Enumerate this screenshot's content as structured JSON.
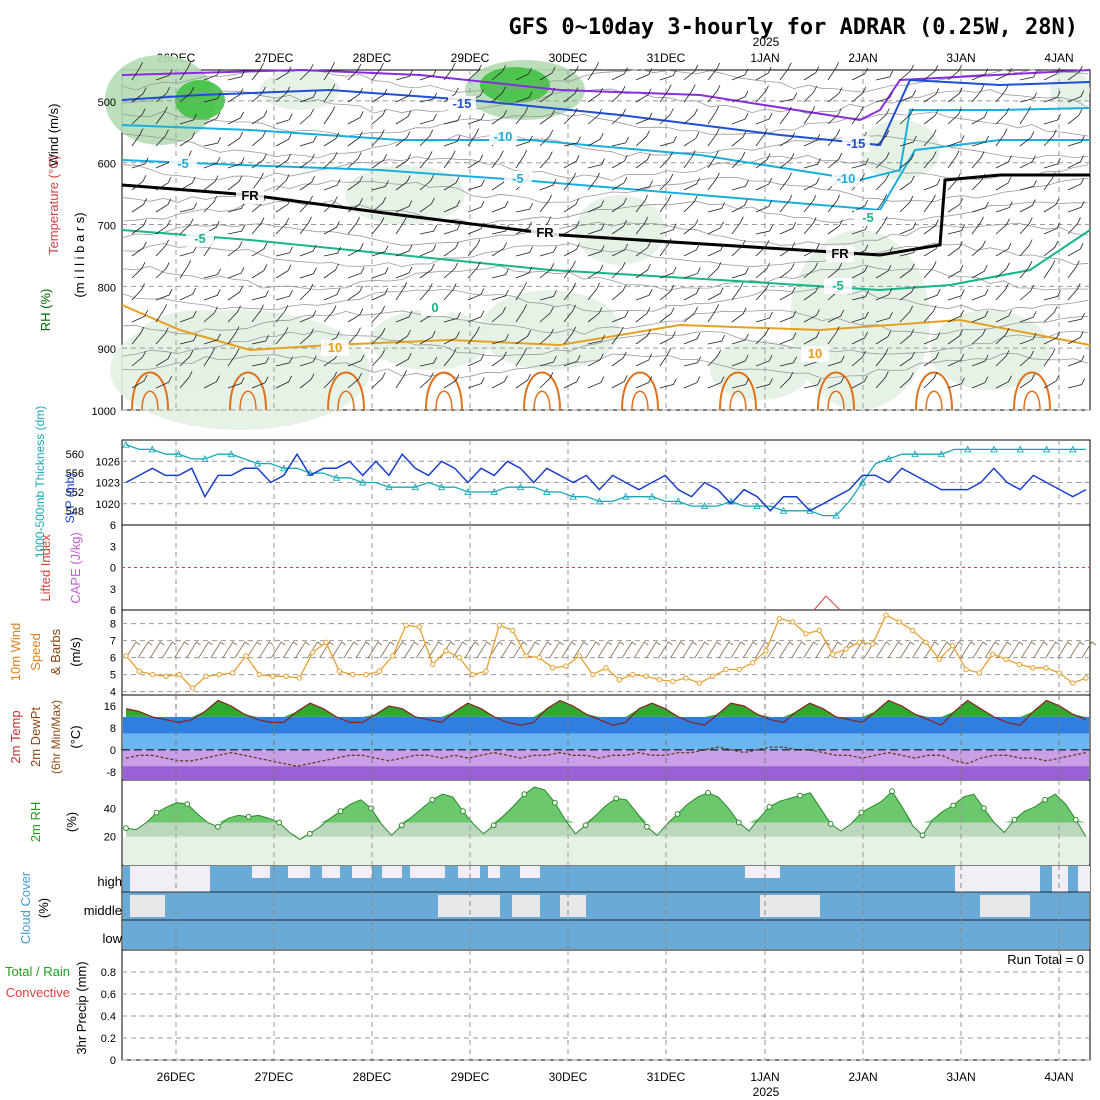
{
  "title": "GFS 0~10day 3-hourly for ADRAR (0.25W, 28N)",
  "year_label": "2025",
  "run_total": "Run Total = 0",
  "dates": [
    "26DEC",
    "27DEC",
    "28DEC",
    "29DEC",
    "30DEC",
    "31DEC",
    "1JAN",
    "2JAN",
    "3JAN",
    "4JAN"
  ],
  "colors": {
    "wind500": "#8a2be2",
    "temp_cold": "#1e4fd6",
    "temp_mid": "#19aee0",
    "temp_warm": "#16b58a",
    "temp_hot": "#e5a020",
    "temp_hotter": "#e0701a",
    "rh_light": "#e4f1e4",
    "rh_mid": "#b4dbb4",
    "rh_dark": "#42c242",
    "slp": "#1a3ecc",
    "thickness": "#1aa8b8",
    "wind10": "#e8a030",
    "temp_fill": "#2ea82e",
    "dew_fill": "#8e44c8",
    "cloud": "#6aaad6"
  },
  "labels": {
    "wind": "Wind (m/s)",
    "temperature": "Temperature (°C)",
    "rh": "RH (%)",
    "millibars": "(m i l l i b a r s)",
    "thickness": "1000-500mb Thickness (dm)",
    "slp": "SLP (mb)",
    "lifted": "Lifted Index",
    "cape": "CAPE (J/kg)",
    "wind10_a": "10m Wind",
    "wind10_b": "Speed",
    "wind10_c": "& Barbs",
    "wind10_d": "(m/s)",
    "temp2m_a": "2m Temp",
    "temp2m_b": "2m DewPt",
    "temp2m_c": "(6hr Min/Max)",
    "temp2m_d": "(°C)",
    "rh2m": "2m RH",
    "rh2m_unit": "(%)",
    "cloud_a": "Cloud Cover",
    "cloud_b": "(%)",
    "cloud_high": "high",
    "cloud_middle": "middle",
    "cloud_low": "low",
    "precip_a": "Total / Rain",
    "precip_b": "Convective",
    "precip_c": "3hr Precip (mm)"
  },
  "contour_labels": [
    "-15",
    "-15",
    "-10",
    "-10",
    "-5",
    "-5",
    "FR",
    "FR",
    "FR",
    "-5",
    "-5",
    "-5",
    "0",
    "10",
    "10"
  ],
  "chart_data": [
    {
      "type": "line",
      "panel": "upper-air",
      "ylabel": "millibars",
      "y_ticks": [
        500,
        600,
        700,
        800,
        900,
        1000
      ],
      "ylim": [
        1000,
        450
      ]
    },
    {
      "type": "line",
      "panel": "thickness-slp",
      "series": [
        {
          "name": "SLP (mb)",
          "axis_ticks": [
            1020,
            1023,
            1026
          ],
          "values": [
            1023,
            1024,
            1025,
            1024,
            1024,
            1025,
            1021,
            1024,
            1024,
            1025,
            1025,
            1023,
            1024,
            1027,
            1024,
            1025,
            1025,
            1026,
            1024,
            1026,
            1024,
            1027,
            1025,
            1024,
            1026,
            1025,
            1023,
            1025,
            1024,
            1026,
            1025,
            1023,
            1025,
            1024,
            1023,
            1024,
            1022,
            1024,
            1023,
            1022,
            1023,
            1024,
            1022,
            1021,
            1023,
            1022,
            1020,
            1022,
            1021,
            1019,
            1021,
            1021,
            1019,
            1020,
            1021,
            1022,
            1024,
            1024,
            1023,
            1025,
            1024,
            1023,
            1022,
            1022,
            1022,
            1023,
            1025,
            1023,
            1022,
            1024,
            1023,
            1022,
            1021,
            1022
          ]
        },
        {
          "name": "1000-500mb Thickness (dm)",
          "axis_ticks": [
            548,
            552,
            556,
            560
          ],
          "values": [
            562,
            561,
            561,
            560,
            560,
            559,
            559,
            560,
            560,
            559,
            558,
            558,
            557,
            557,
            556,
            556,
            555,
            555,
            554,
            554,
            553,
            553,
            553,
            554,
            553,
            553,
            552,
            552,
            552,
            553,
            553,
            553,
            552,
            552,
            551,
            551,
            550,
            550,
            551,
            551,
            551,
            550,
            550,
            549,
            549,
            549,
            550,
            549,
            549,
            549,
            548,
            548,
            548,
            547,
            547,
            550,
            554,
            558,
            559,
            560,
            560,
            560,
            560,
            561,
            561,
            561,
            561,
            561,
            561,
            561,
            561,
            561,
            561,
            561
          ]
        }
      ]
    },
    {
      "type": "line",
      "panel": "lifted-cape",
      "y_ticks": [
        -6,
        -3,
        0,
        3,
        6
      ],
      "ylim": [
        -6,
        6
      ],
      "series": [
        {
          "name": "Lifted Index",
          "values": []
        }
      ]
    },
    {
      "type": "line",
      "panel": "wind10",
      "y_ticks": [
        4,
        5,
        6,
        7,
        8
      ],
      "ylim": [
        3.8,
        8.8
      ],
      "series": [
        {
          "name": "10m Wind Speed (m/s)",
          "values": [
            6.1,
            5.2,
            5.0,
            4.9,
            5.0,
            4.2,
            4.9,
            5.0,
            5.1,
            6.1,
            5.0,
            4.9,
            4.9,
            4.8,
            6.3,
            6.9,
            5.2,
            5.0,
            5.0,
            5.2,
            6.1,
            7.9,
            7.8,
            5.6,
            6.4,
            6.0,
            5.0,
            5.2,
            7.9,
            7.6,
            6.1,
            6.0,
            5.4,
            5.5,
            6.1,
            5.0,
            5.4,
            4.7,
            5.0,
            4.9,
            4.7,
            4.6,
            4.8,
            4.5,
            4.9,
            5.3,
            5.3,
            5.7,
            6.4,
            8.3,
            8.1,
            7.4,
            7.6,
            6.2,
            6.5,
            6.9,
            6.8,
            8.5,
            8.1,
            7.6,
            6.9,
            5.9,
            6.7,
            5.3,
            5.1,
            6.2,
            5.9,
            5.6,
            5.4,
            5.4,
            5.1,
            4.5,
            4.8
          ]
        }
      ]
    },
    {
      "type": "area",
      "panel": "temp2m",
      "y_ticks": [
        -8,
        0,
        8,
        16
      ],
      "ylim": [
        -11,
        20
      ],
      "series": [
        {
          "name": "2m Temp (°C)",
          "values": [
            15,
            14,
            12,
            11,
            10,
            11,
            14,
            18,
            16,
            13,
            11,
            10,
            10,
            14,
            17,
            15,
            12,
            10,
            10,
            13,
            16,
            15,
            12,
            11,
            10,
            14,
            17,
            15,
            12,
            10,
            9,
            10,
            15,
            18,
            16,
            13,
            11,
            9,
            10,
            15,
            17,
            15,
            12,
            10,
            9,
            13,
            17,
            16,
            13,
            11,
            10,
            14,
            17,
            15,
            12,
            11,
            10,
            14,
            18,
            16,
            13,
            11,
            9,
            14,
            18,
            15,
            12,
            10,
            9,
            14,
            18,
            16,
            13,
            11
          ]
        },
        {
          "name": "2m DewPt (°C)",
          "values": [
            -3,
            -2,
            -2,
            -3,
            -4,
            -4,
            -3,
            -2,
            -1,
            -2,
            -3,
            -4,
            -5,
            -6,
            -5,
            -4,
            -3,
            -2,
            -2,
            -3,
            -4,
            -3,
            -2,
            -2,
            -3,
            -2,
            -3,
            -2,
            -1,
            -2,
            -3,
            -2,
            -2,
            -1,
            -2,
            -2,
            -3,
            -2,
            -2,
            -1,
            -2,
            -2,
            -1,
            -1,
            0,
            1,
            0,
            -1,
            0,
            1,
            1,
            0,
            0,
            -1,
            -2,
            -2,
            -3,
            -2,
            -1,
            -2,
            -3,
            -2,
            -2,
            -4,
            -5,
            -3,
            -2,
            -2,
            -3,
            -3,
            -4,
            -3,
            -2,
            -1
          ]
        }
      ]
    },
    {
      "type": "area",
      "panel": "rh2m",
      "y_ticks": [
        20,
        40
      ],
      "ylim": [
        0,
        60
      ],
      "series": [
        {
          "name": "2m RH (%)",
          "values": [
            26,
            25,
            30,
            37,
            41,
            44,
            43,
            36,
            30,
            27,
            33,
            35,
            34,
            35,
            33,
            30,
            23,
            18,
            22,
            27,
            33,
            38,
            43,
            46,
            40,
            29,
            21,
            28,
            34,
            40,
            46,
            50,
            48,
            38,
            29,
            22,
            28,
            35,
            42,
            50,
            55,
            53,
            44,
            32,
            22,
            28,
            35,
            42,
            47,
            46,
            37,
            27,
            21,
            29,
            36,
            43,
            48,
            51,
            48,
            40,
            30,
            24,
            33,
            41,
            45,
            47,
            49,
            51,
            40,
            29,
            24,
            29,
            37,
            41,
            45,
            52,
            41,
            28,
            21,
            32,
            38,
            42,
            48,
            50,
            40,
            30,
            23,
            32,
            38,
            41,
            46,
            50,
            43,
            32,
            20
          ]
        }
      ]
    },
    {
      "type": "heatmap",
      "panel": "cloud-cover",
      "rows": [
        "high",
        "middle",
        "low"
      ]
    },
    {
      "type": "bar",
      "panel": "precip",
      "y_ticks": [
        0,
        0.2,
        0.4,
        0.6,
        0.8
      ],
      "ylim": [
        0,
        1
      ],
      "series": [
        {
          "name": "3hr Precip (mm)",
          "values": []
        }
      ]
    }
  ]
}
